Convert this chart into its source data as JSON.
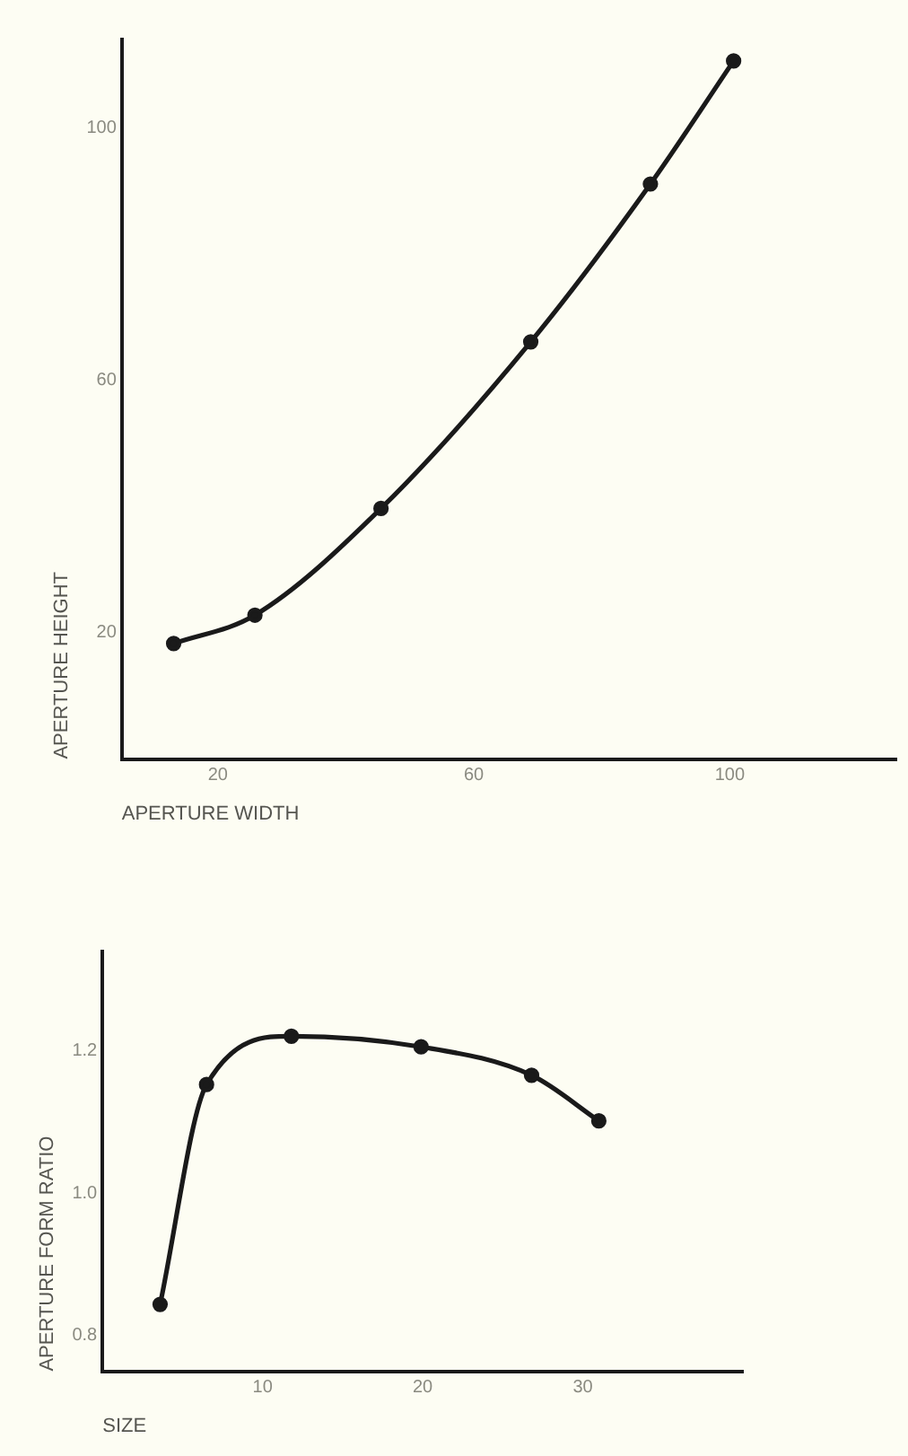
{
  "chart_data": [
    {
      "type": "line",
      "xlabel": "APERTURE WIDTH",
      "ylabel": "APERTURE HEIGHT",
      "xlim": [
        5,
        126
      ],
      "ylim": [
        0,
        114
      ],
      "xticks": [
        20,
        60,
        100
      ],
      "yticks": [
        20,
        60,
        100
      ],
      "grid": false,
      "marker": "circle",
      "line_style": "solid",
      "series": [
        {
          "color": "#1a1a1a",
          "x": [
            13.1,
            25.8,
            45.5,
            68.9,
            87.6,
            100.6
          ],
          "values": [
            18.3,
            22.8,
            39.7,
            66.1,
            91.1,
            110.6
          ]
        }
      ]
    },
    {
      "type": "line",
      "xlabel": "SIZE",
      "ylabel": "APERTURE FORM RATIO",
      "xlim": [
        0,
        40
      ],
      "ylim": [
        0.75,
        1.34
      ],
      "xticks": [
        10,
        20,
        30
      ],
      "yticks": [
        {
          "value": 0.8,
          "label": "0.8"
        },
        {
          "value": 1.0,
          "label": "1.0"
        },
        {
          "value": 1.2,
          "label": "1.2"
        }
      ],
      "grid": false,
      "marker": "circle",
      "line_style": "solid",
      "series": [
        {
          "color": "#1a1a1a",
          "x": [
            3.6,
            6.5,
            11.8,
            19.9,
            26.8,
            31.0
          ],
          "values": [
            0.844,
            1.153,
            1.221,
            1.206,
            1.166,
            1.102
          ]
        }
      ]
    }
  ]
}
